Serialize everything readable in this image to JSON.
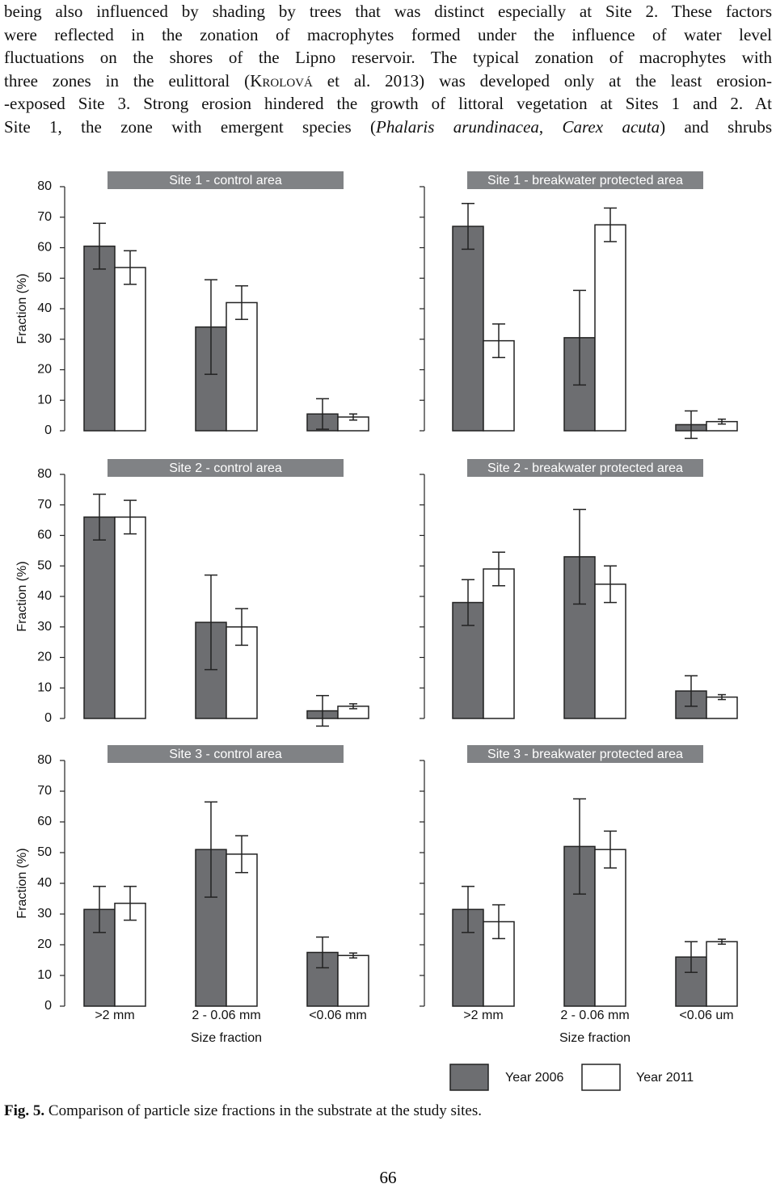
{
  "body_text": {
    "lines": [
      [
        {
          "text": "being also influenced by shading by trees that was distinct especially at Site 2. These factors"
        }
      ],
      [
        {
          "text": "were reflected in the zonation of macrophytes formed under the influence of water level"
        }
      ],
      [
        {
          "text": "fluctuations on the shores of the Lipno reservoir. The typical zonation of macrophytes with"
        }
      ],
      [
        {
          "text": "three zones in the eulittoral ("
        },
        {
          "text": "Krolová",
          "style": "small-caps"
        },
        {
          "text": " et al. 2013) was developed only at the least erosion-"
        }
      ],
      [
        {
          "text": "-exposed Site 3. Strong erosion hindered the growth of littoral vegetation at Sites 1 and 2. At"
        }
      ],
      [
        {
          "text": "Site 1, the zone with emergent species ("
        },
        {
          "text": "Phalaris arundinacea",
          "style": "italic"
        },
        {
          "text": ", "
        },
        {
          "text": "Carex acuta",
          "style": "italic"
        },
        {
          "text": ") and shrubs"
        }
      ]
    ]
  },
  "chart_data": [
    {
      "type": "bar",
      "title": "Site 1 - control area",
      "categories": [
        null,
        null,
        null
      ],
      "y_label": "Fraction (%)",
      "ylim": [
        0,
        80
      ],
      "yticks": [
        0,
        10,
        20,
        30,
        40,
        50,
        60,
        70,
        80
      ],
      "ytick_labels": true,
      "series": [
        {
          "color": "#6d6e71",
          "values": [
            60.5,
            34,
            5.5
          ],
          "errors": [
            7.5,
            15.5,
            5
          ]
        },
        {
          "color": "#ffffff",
          "values": [
            53.5,
            42,
            4.5
          ],
          "errors": [
            5.5,
            5.5,
            1
          ]
        }
      ]
    },
    {
      "type": "bar",
      "title": "Site 1 - breakwater protected area",
      "categories": [
        null,
        null,
        null
      ],
      "ylim": [
        0,
        80
      ],
      "yticks": [
        0,
        10,
        20,
        30,
        40,
        50,
        60,
        70,
        80
      ],
      "ytick_labels": false,
      "series": [
        {
          "color": "#6d6e71",
          "values": [
            67,
            30.5,
            2
          ],
          "errors": [
            7.5,
            15.5,
            4.5
          ]
        },
        {
          "color": "#ffffff",
          "values": [
            29.5,
            67.5,
            3
          ],
          "errors": [
            5.5,
            5.5,
            0.8
          ]
        }
      ]
    },
    {
      "type": "bar",
      "title": "Site 2 - control area",
      "categories": [
        null,
        null,
        null
      ],
      "y_label": "Fraction (%)",
      "ylim": [
        0,
        80
      ],
      "yticks": [
        0,
        10,
        20,
        30,
        40,
        50,
        60,
        70,
        80
      ],
      "ytick_labels": true,
      "series": [
        {
          "color": "#6d6e71",
          "values": [
            66,
            31.5,
            2.5
          ],
          "errors": [
            7.5,
            15.5,
            5
          ]
        },
        {
          "color": "#ffffff",
          "values": [
            66,
            30,
            4
          ],
          "errors": [
            5.5,
            6,
            0.8
          ]
        }
      ]
    },
    {
      "type": "bar",
      "title": "Site 2 - breakwater protected area",
      "categories": [
        null,
        null,
        null
      ],
      "ylim": [
        0,
        80
      ],
      "yticks": [
        0,
        10,
        20,
        30,
        40,
        50,
        60,
        70,
        80
      ],
      "ytick_labels": false,
      "series": [
        {
          "color": "#6d6e71",
          "values": [
            38,
            53,
            9
          ],
          "errors": [
            7.5,
            15.5,
            5
          ]
        },
        {
          "color": "#ffffff",
          "values": [
            49,
            44,
            7
          ],
          "errors": [
            5.5,
            6,
            0.8
          ]
        }
      ]
    },
    {
      "type": "bar",
      "title": "Site 3 - control area",
      "categories": [
        ">2 mm",
        "2 - 0.06 mm",
        "<0.06 mm"
      ],
      "x_label": "Size fraction",
      "y_label": "Fraction (%)",
      "ylim": [
        0,
        80
      ],
      "yticks": [
        0,
        10,
        20,
        30,
        40,
        50,
        60,
        70,
        80
      ],
      "ytick_labels": true,
      "series": [
        {
          "color": "#6d6e71",
          "values": [
            31.5,
            51,
            17.5
          ],
          "errors": [
            7.5,
            15.5,
            5
          ]
        },
        {
          "color": "#ffffff",
          "values": [
            33.5,
            49.5,
            16.5
          ],
          "errors": [
            5.5,
            6,
            0.8
          ]
        }
      ]
    },
    {
      "type": "bar",
      "title": "Site 3 - breakwater protected area",
      "categories": [
        ">2 mm",
        "2 - 0.06 mm",
        "<0.06 um"
      ],
      "x_label": "Size fraction",
      "ylim": [
        0,
        80
      ],
      "yticks": [
        0,
        10,
        20,
        30,
        40,
        50,
        60,
        70,
        80
      ],
      "ytick_labels": false,
      "series": [
        {
          "color": "#6d6e71",
          "values": [
            31.5,
            52,
            16
          ],
          "errors": [
            7.5,
            15.5,
            5
          ]
        },
        {
          "color": "#ffffff",
          "values": [
            27.5,
            51,
            21
          ],
          "errors": [
            5.5,
            6,
            0.8
          ]
        }
      ]
    }
  ],
  "legend": [
    {
      "name": "Year 2006",
      "color": "#6d6e71"
    },
    {
      "name": "Year 2011",
      "color": "#ffffff"
    }
  ],
  "caption": {
    "label": "Fig. 5.",
    "text": "Comparison of particle size fractions in the substrate at the study sites."
  },
  "page_number": "66"
}
